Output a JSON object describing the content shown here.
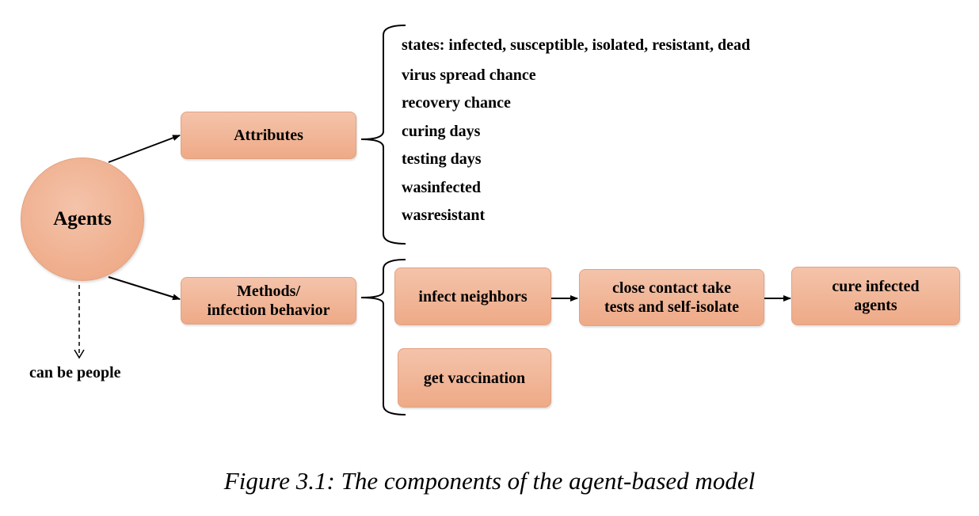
{
  "agents": {
    "label": "Agents",
    "note": "can be people"
  },
  "attributes": {
    "label": "Attributes",
    "items": [
      "states: infected, susceptible, isolated, resistant, dead",
      "virus spread chance",
      "recovery chance",
      "curing days",
      "testing days",
      "wasinfected",
      "wasresistant"
    ]
  },
  "methods": {
    "label_line1": "Methods/",
    "label_line2": "infection behavior",
    "steps": [
      {
        "line1": "infect neighbors",
        "line2": ""
      },
      {
        "line1": "close contact take",
        "line2": "tests and self-isolate"
      },
      {
        "line1": "cure infected",
        "line2": "agents"
      },
      {
        "line1": "get vaccination",
        "line2": ""
      }
    ]
  },
  "caption": "Figure 3.1: The components of the agent-based model",
  "colors": {
    "box_fill_top": "#f4c3aa",
    "box_fill_bottom": "#eeaa87",
    "box_border": "#e2a181"
  }
}
